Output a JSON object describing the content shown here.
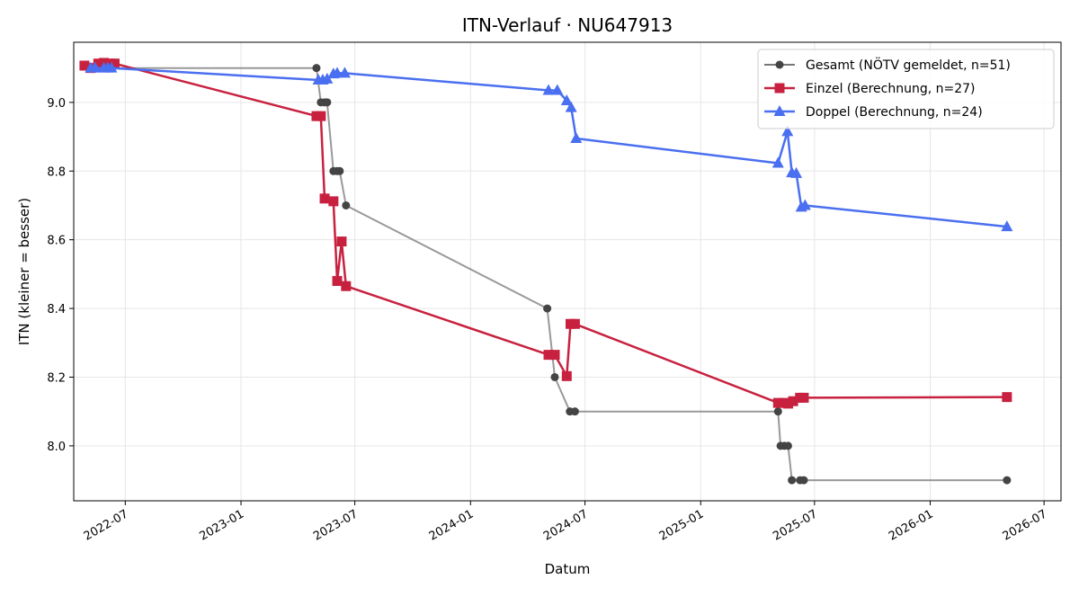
{
  "chart_data": {
    "type": "line",
    "title": "ITN-Verlauf · NU647913",
    "xlabel": "Datum",
    "ylabel": "ITN  (kleiner = besser)",
    "xlim": [
      "2022-04-10",
      "2026-07-28"
    ],
    "ylim": [
      7.84,
      9.175
    ],
    "grid": true,
    "legend_position": "top-right",
    "x_ticks": [
      "2022-07-01",
      "2023-01-01",
      "2023-07-01",
      "2024-01-01",
      "2024-07-01",
      "2025-01-01",
      "2025-07-01",
      "2026-01-01",
      "2026-07-01"
    ],
    "x_tick_labels": [
      "2022-07",
      "2023-01",
      "2023-07",
      "2024-01",
      "2024-07",
      "2025-01",
      "2025-07",
      "2026-01",
      "2026-07"
    ],
    "y_ticks": [
      8.0,
      8.2,
      8.4,
      8.6,
      8.8,
      9.0
    ],
    "y_tick_labels": [
      "8.0",
      "8.2",
      "8.4",
      "8.6",
      "8.8",
      "9.0"
    ],
    "series": [
      {
        "name": "Gesamt (NÖTV gemeldet, n=51)",
        "color": "#444444",
        "marker": "circle",
        "x": [
          "2022-05-08",
          "2022-05-14",
          "2022-05-18",
          "2022-05-28",
          "2022-06-03",
          "2022-06-07",
          "2023-05-01",
          "2023-05-08",
          "2023-05-14",
          "2023-05-18",
          "2023-05-28",
          "2023-06-03",
          "2023-06-07",
          "2023-06-17",
          "2024-05-02",
          "2024-05-14",
          "2024-06-07",
          "2024-06-15",
          "2025-05-04",
          "2025-05-08",
          "2025-05-14",
          "2025-05-20",
          "2025-05-26",
          "2025-06-08",
          "2025-06-14",
          "2026-05-03"
        ],
        "y": [
          9.1,
          9.1,
          9.1,
          9.1,
          9.1,
          9.1,
          9.1,
          9.0,
          9.0,
          9.0,
          8.8,
          8.8,
          8.8,
          8.7,
          8.4,
          8.2,
          8.1,
          8.1,
          8.1,
          8.0,
          8.0,
          8.0,
          7.9,
          7.9,
          7.9,
          7.9
        ]
      },
      {
        "name": "Einzel (Berechnung, n=27)",
        "color": "#c8213f",
        "marker": "square",
        "x": [
          "2022-04-27",
          "2022-05-07",
          "2022-05-19",
          "2022-05-28",
          "2022-06-07",
          "2022-06-14",
          "2023-05-01",
          "2023-05-08",
          "2023-05-14",
          "2023-05-28",
          "2023-06-03",
          "2023-06-10",
          "2023-06-17",
          "2024-05-04",
          "2024-05-14",
          "2024-06-02",
          "2024-06-08",
          "2024-06-15",
          "2025-05-04",
          "2025-05-14",
          "2025-05-20",
          "2025-05-28",
          "2025-06-08",
          "2025-06-14",
          "2026-05-03"
        ],
        "y": [
          9.107,
          9.1,
          9.113,
          9.115,
          9.113,
          9.113,
          8.96,
          8.96,
          8.72,
          8.712,
          8.48,
          8.595,
          8.465,
          8.265,
          8.265,
          8.203,
          8.355,
          8.355,
          8.125,
          8.125,
          8.123,
          8.13,
          8.14,
          8.14,
          8.142
        ]
      },
      {
        "name": "Doppel (Berechnung, n=24)",
        "color": "#4a6ff0",
        "marker": "triangle",
        "x": [
          "2022-05-07",
          "2022-05-14",
          "2022-05-28",
          "2022-06-03",
          "2022-06-09",
          "2023-05-04",
          "2023-05-11",
          "2023-05-18",
          "2023-05-28",
          "2023-06-03",
          "2023-06-15",
          "2024-05-04",
          "2024-05-18",
          "2024-06-02",
          "2024-06-09",
          "2024-06-17",
          "2025-05-04",
          "2025-05-19",
          "2025-05-26",
          "2025-06-02",
          "2025-06-10",
          "2025-06-16",
          "2026-05-03"
        ],
        "y": [
          9.1,
          9.1,
          9.1,
          9.1,
          9.1,
          9.065,
          9.065,
          9.068,
          9.083,
          9.085,
          9.085,
          9.035,
          9.035,
          9.005,
          8.985,
          8.895,
          8.823,
          8.915,
          8.795,
          8.793,
          8.695,
          8.7,
          8.638
        ]
      }
    ]
  }
}
